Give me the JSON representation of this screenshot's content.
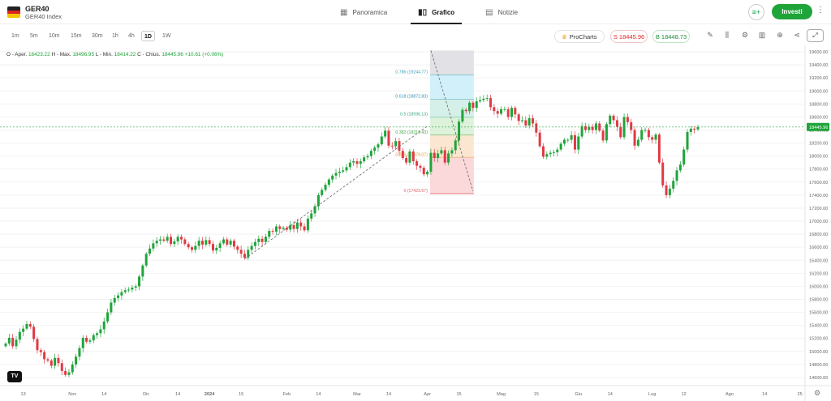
{
  "header": {
    "symbol": "GER40",
    "symbol_name": "GER40 Index",
    "tabs": [
      {
        "label": "Panoramica",
        "icon": "grid-icon"
      },
      {
        "label": "Grafico",
        "icon": "candles-icon",
        "active": true
      },
      {
        "label": "Notizie",
        "icon": "news-icon"
      }
    ],
    "invest_label": "Investi"
  },
  "toolbar": {
    "timeframes": [
      "1m",
      "5m",
      "10m",
      "15m",
      "30m",
      "1h",
      "4h",
      "1D",
      "1W"
    ],
    "active_timeframe": "1D",
    "prochart_label": "ProCharts",
    "sell_label": "S 18445.96",
    "buy_label": "B 18448.73"
  },
  "ohlc": {
    "o_label": "O - Aper.",
    "o": "18423.22",
    "h_label": "H - Max.",
    "h": "18496.95",
    "l_label": "L - Min.",
    "l": "18414.22",
    "c_label": "C - Chius.",
    "c": "18445.96",
    "change": "+10.61 (+0.06%)"
  },
  "colors": {
    "up": "#1fa43a",
    "down": "#e03a44",
    "accent": "#1fa43a"
  },
  "chart_data": {
    "type": "candlestick",
    "current_price_label": "18445.96",
    "y_ticks": [
      "19600.00",
      "19400.00",
      "19200.00",
      "19000.00",
      "18800.00",
      "18600.00",
      "18400.00",
      "18200.00",
      "18000.00",
      "17800.00",
      "17600.00",
      "17400.00",
      "17200.00",
      "17000.00",
      "16800.00",
      "16600.00",
      "16400.00",
      "16200.00",
      "16000.00",
      "15800.00",
      "15600.00",
      "15400.00",
      "15200.00",
      "15000.00",
      "14800.00",
      "14600.00"
    ],
    "ylim": [
      14500,
      19650
    ],
    "x_ticks": [
      {
        "label": "13",
        "i": 5
      },
      {
        "label": "Nov",
        "i": 19
      },
      {
        "label": "14",
        "i": 28
      },
      {
        "label": "Dic",
        "i": 40
      },
      {
        "label": "14",
        "i": 49
      },
      {
        "label": "2024",
        "i": 58
      },
      {
        "label": "15",
        "i": 67
      },
      {
        "label": "Feb",
        "i": 80
      },
      {
        "label": "14",
        "i": 89
      },
      {
        "label": "Mar",
        "i": 100
      },
      {
        "label": "14",
        "i": 109
      },
      {
        "label": "Apr",
        "i": 120
      },
      {
        "label": "15",
        "i": 129
      },
      {
        "label": "Mag",
        "i": 141
      },
      {
        "label": "15",
        "i": 151
      },
      {
        "label": "Giu",
        "i": 163
      },
      {
        "label": "14",
        "i": 172
      },
      {
        "label": "Lug",
        "i": 184
      },
      {
        "label": "12",
        "i": 193
      },
      {
        "label": "Ago",
        "i": 206
      },
      {
        "label": "14",
        "i": 216
      },
      {
        "label": "25",
        "i": 226
      }
    ],
    "closes": [
      15120,
      15210,
      15080,
      15180,
      15300,
      15350,
      15420,
      15380,
      15190,
      15020,
      14990,
      14880,
      14860,
      14780,
      14900,
      14820,
      14700,
      14640,
      14680,
      14800,
      14920,
      15050,
      15210,
      15150,
      15170,
      15250,
      15280,
      15340,
      15460,
      15600,
      15750,
      15820,
      15860,
      15910,
      15940,
      15950,
      15980,
      16000,
      16150,
      16320,
      16500,
      16580,
      16660,
      16700,
      16720,
      16700,
      16760,
      16650,
      16690,
      16760,
      16720,
      16650,
      16600,
      16560,
      16620,
      16700,
      16640,
      16710,
      16650,
      16550,
      16590,
      16660,
      16720,
      16640,
      16700,
      16610,
      16560,
      16500,
      16440,
      16560,
      16620,
      16680,
      16730,
      16680,
      16760,
      16850,
      16840,
      16920,
      16880,
      16900,
      16870,
      16940,
      16880,
      16980,
      16920,
      16860,
      17040,
      17120,
      17230,
      17400,
      17480,
      17560,
      17640,
      17700,
      17740,
      17760,
      17780,
      17830,
      17900,
      17920,
      17880,
      17920,
      17980,
      18000,
      18080,
      18130,
      18180,
      18300,
      18390,
      18160,
      18150,
      18230,
      18080,
      17970,
      17900,
      18070,
      17920,
      17850,
      17820,
      17720,
      17760,
      18050,
      17970,
      18040,
      18090,
      17900,
      18040,
      18090,
      18240,
      18530,
      18710,
      18690,
      18820,
      18740,
      18840,
      18860,
      18880,
      18890,
      18750,
      18690,
      18650,
      18720,
      18720,
      18600,
      18740,
      18640,
      18540,
      18550,
      18470,
      18580,
      18500,
      18360,
      18150,
      17990,
      18030,
      18050,
      18060,
      18100,
      18190,
      18250,
      18250,
      18320,
      18100,
      18300,
      18460,
      18400,
      18450,
      18400,
      18500,
      18390,
      18240,
      18490,
      18620,
      18550,
      18450,
      18290,
      18600,
      18520,
      18400,
      18160,
      18250,
      18400,
      18400,
      18290,
      18250,
      18330,
      17900,
      17550,
      17400,
      17500,
      17620,
      17780,
      17870,
      18100,
      18370,
      18420,
      18410,
      18446
    ],
    "fibonacci": {
      "levels": [
        {
          "label": "0.786 (19244.77)",
          "value": 19244.77
        },
        {
          "label": "0.618 (18872.83)",
          "value": 18872.83
        },
        {
          "label": "0.5 (18596.13)",
          "value": 18596.13
        },
        {
          "label": "0.382 (18319.43)",
          "value": 18319.43
        },
        {
          "label": "0.236 (17979.07)",
          "value": 17979.07
        },
        {
          "label": "0 (17423.67)",
          "value": 17423.67
        }
      ],
      "top": 19620,
      "i_start": 121,
      "i_end": 133
    },
    "trendlines": [
      {
        "i1": 68,
        "v1": 16420,
        "i2": 120,
        "v2": 18460
      },
      {
        "i1": 121,
        "v1": 19620,
        "i2": 133,
        "v2": 17460
      }
    ]
  }
}
